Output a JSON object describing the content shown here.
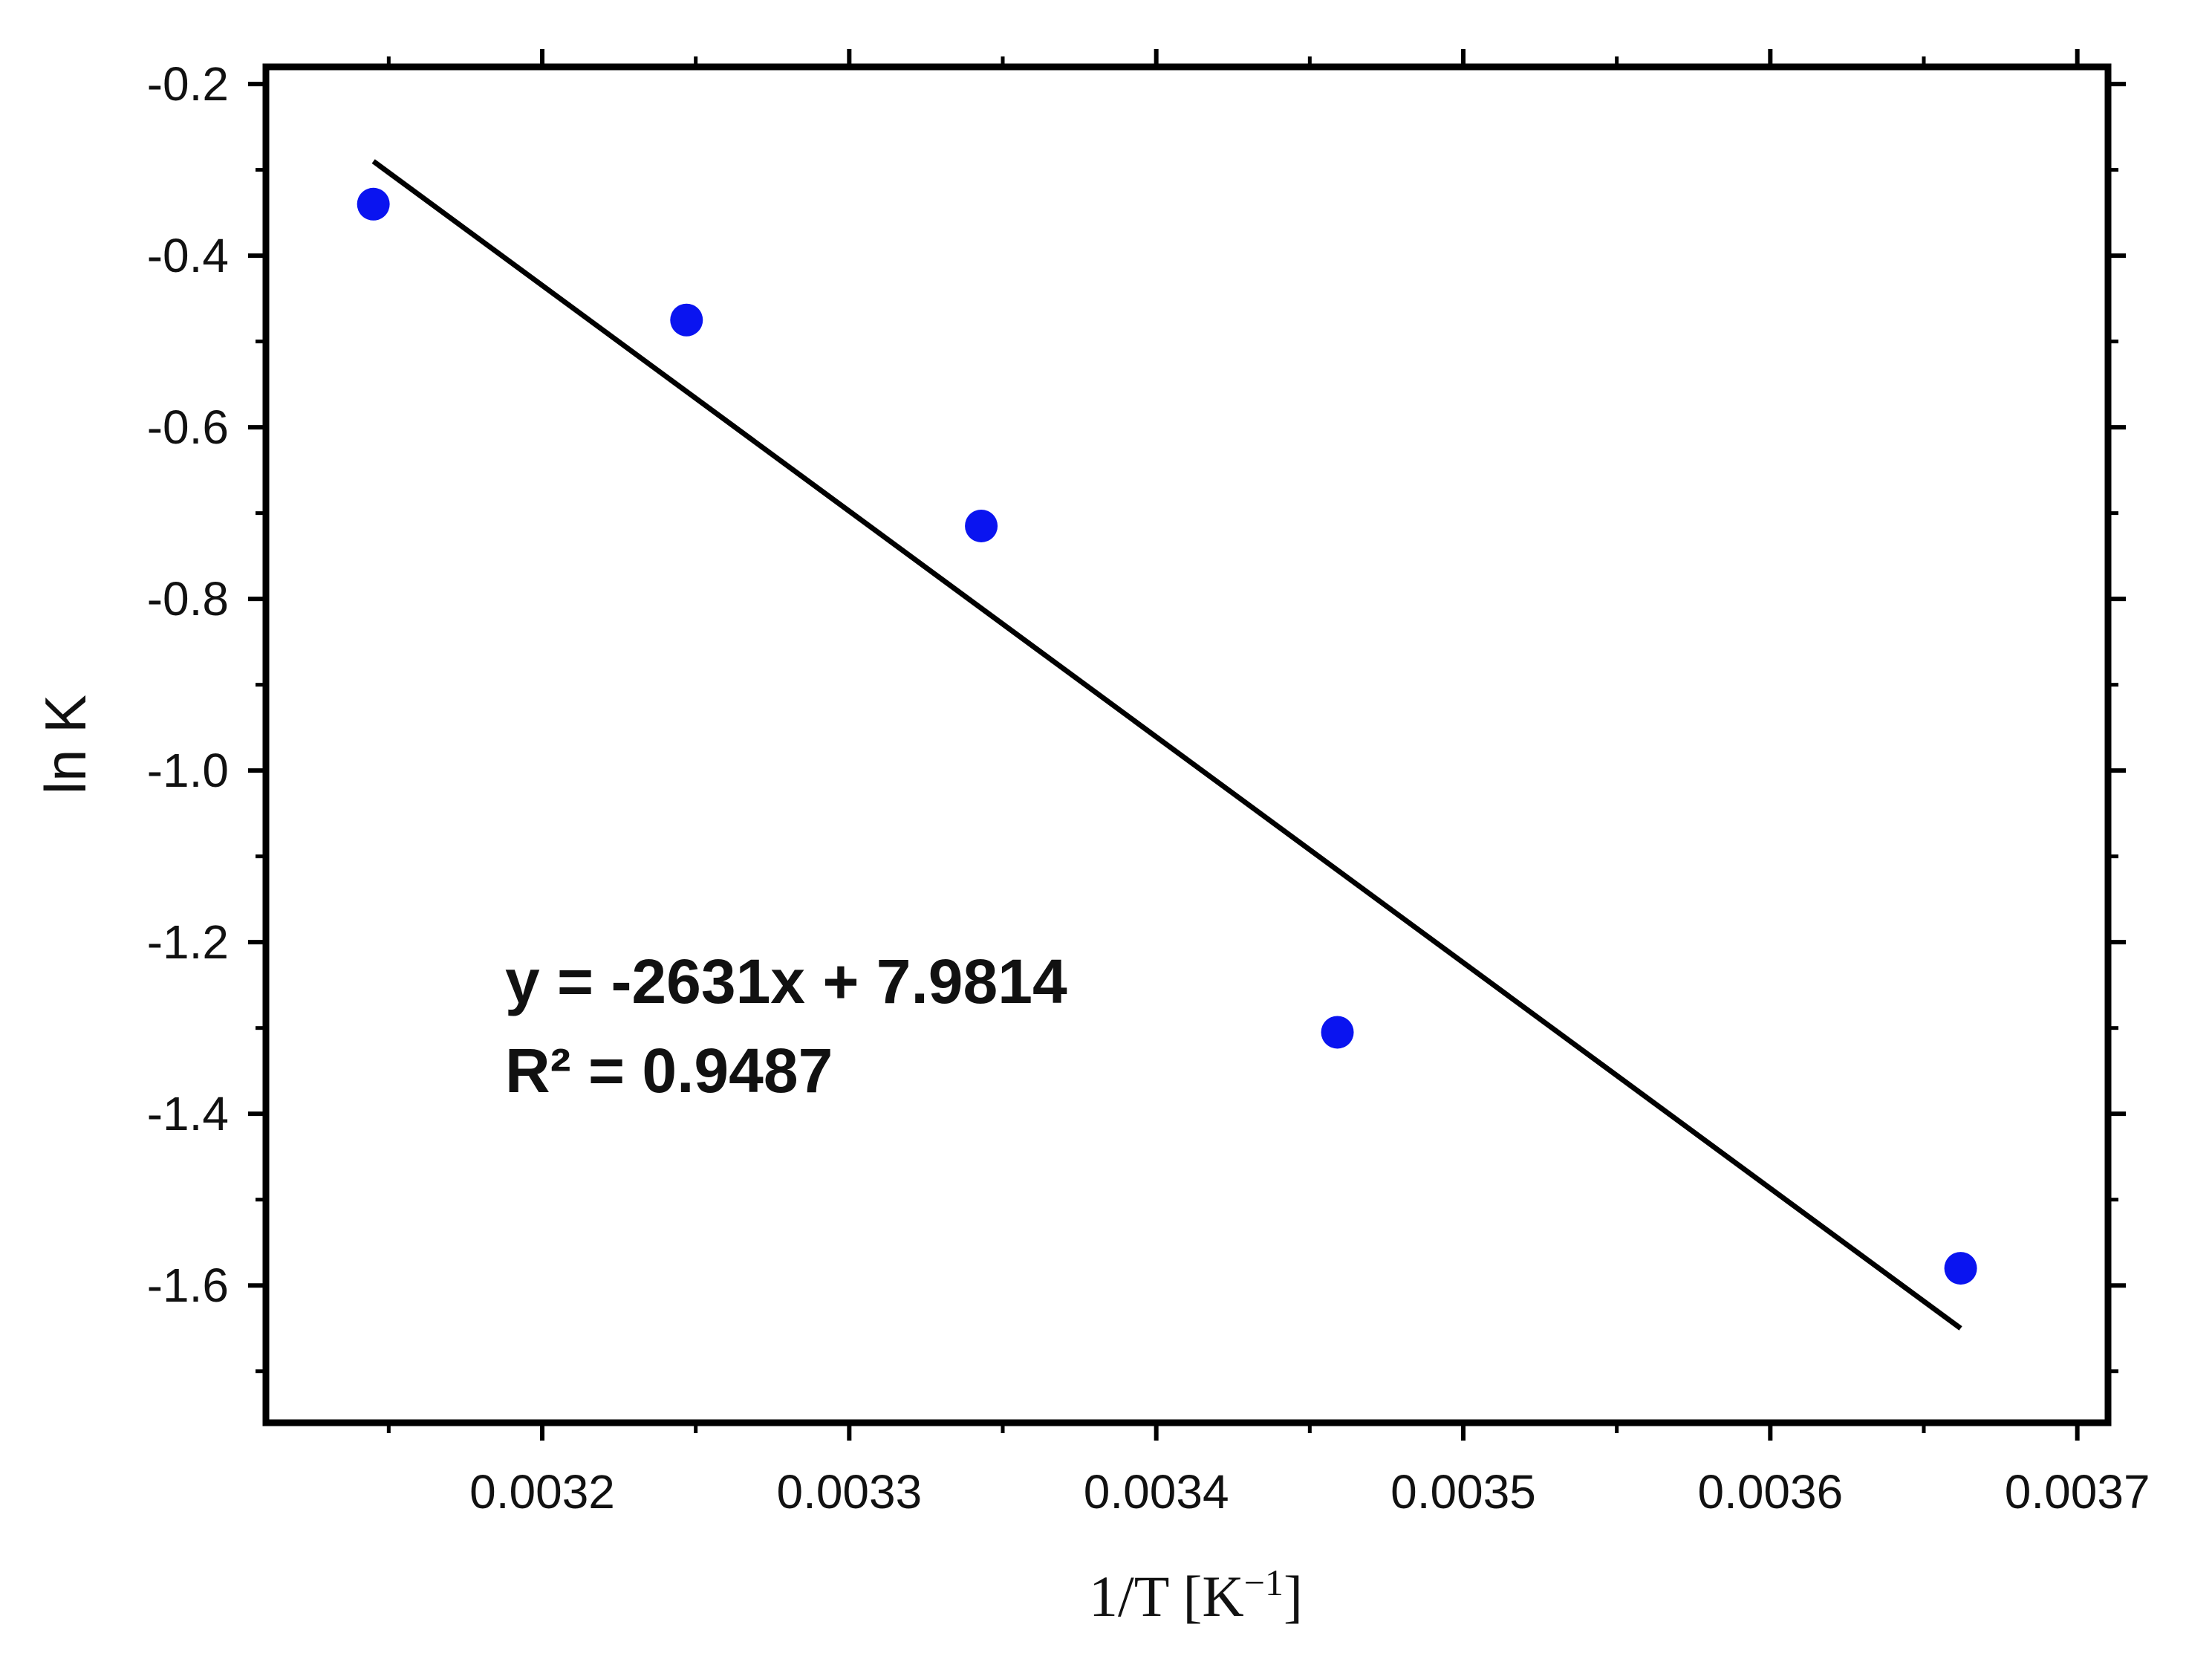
{
  "chart_data": {
    "type": "scatter",
    "title": "",
    "xlabel": "1/T [K",
    "xlabel_sup": "−1",
    "xlabel_end": "]",
    "ylabel": "ln K",
    "xlim": [
      0.00311,
      0.00371
    ],
    "ylim": [
      -1.76,
      -0.18
    ],
    "x_ticks": [
      0.0032,
      0.0033,
      0.0034,
      0.0035,
      0.0036,
      0.0037
    ],
    "x_tick_labels": [
      "0.0032",
      "0.0033",
      "0.0034",
      "0.0035",
      "0.0036",
      "0.0037"
    ],
    "y_ticks": [
      -0.2,
      -0.4,
      -0.6,
      -0.8,
      -1.0,
      -1.2,
      -1.4,
      -1.6
    ],
    "y_tick_labels": [
      "-0.2",
      "-0.4",
      "-0.6",
      "-0.8",
      "-1.0",
      "-1.2",
      "-1.4",
      "-1.6"
    ],
    "grid": false,
    "legend": "none",
    "series": [
      {
        "points": [
          {
            "x": 0.003145,
            "y": -0.34
          },
          {
            "x": 0.003247,
            "y": -0.475
          },
          {
            "x": 0.003343,
            "y": -0.715
          },
          {
            "x": 0.003459,
            "y": -1.305
          },
          {
            "x": 0.003662,
            "y": -1.58
          }
        ],
        "color": "#0a14f0"
      }
    ],
    "fit_line": {
      "x_start": 0.003145,
      "x_end": 0.003662,
      "y_start": -0.29,
      "y_end": -1.65,
      "color": "#000000"
    },
    "annotations": [
      "y = -2631x + 7.9814",
      "R² = 0.9487"
    ]
  }
}
